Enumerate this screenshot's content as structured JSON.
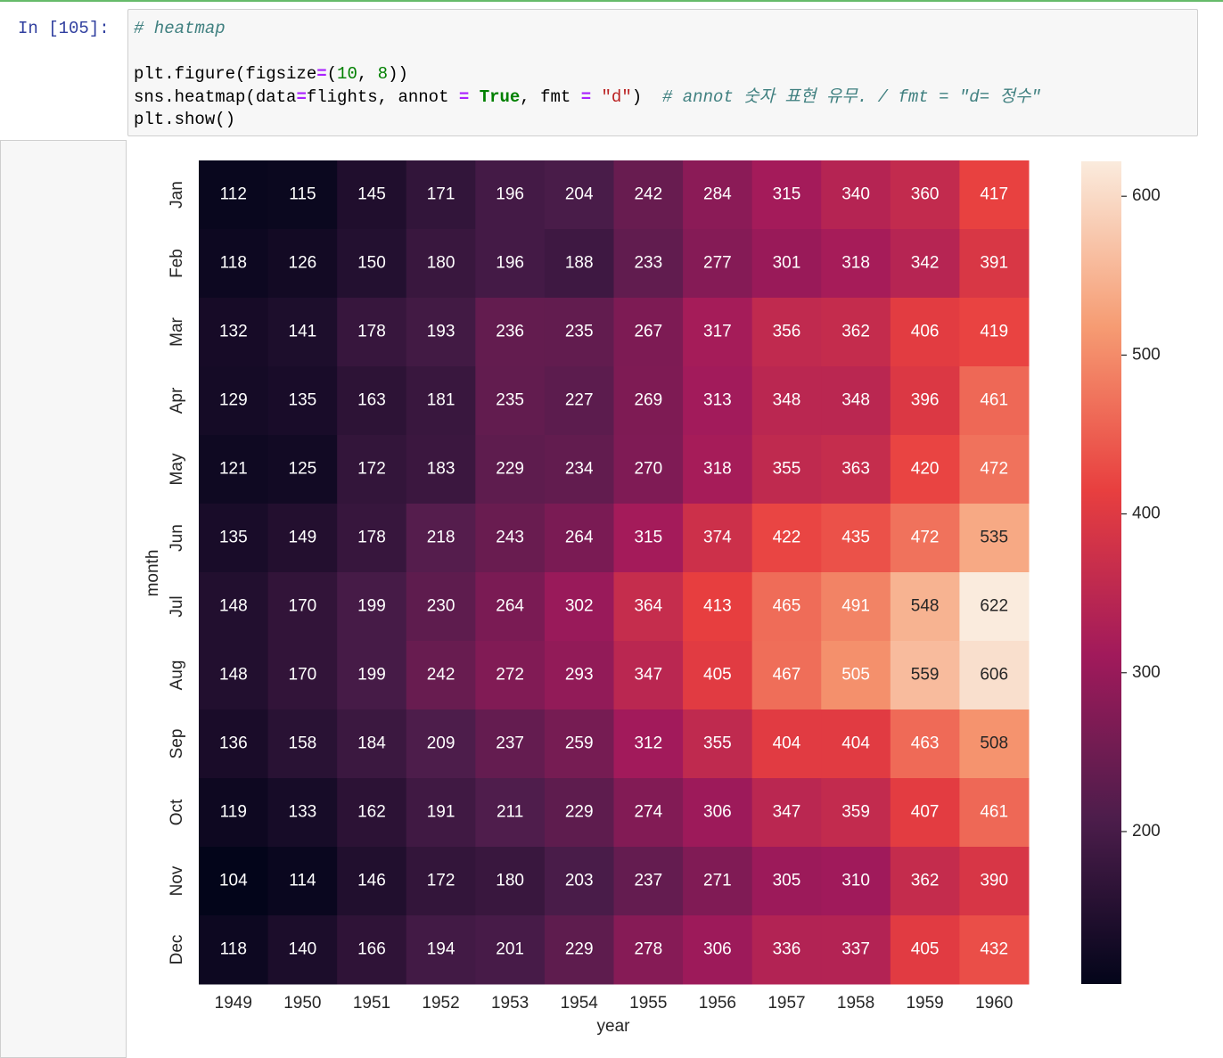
{
  "prompt": "In [105]:",
  "code": {
    "lines": [
      [
        {
          "text": "# heatmap",
          "style": "comment"
        }
      ],
      [],
      [
        {
          "text": "plt.figure(figsize",
          "style": "plain"
        },
        {
          "text": "=",
          "style": "operator"
        },
        {
          "text": "(",
          "style": "plain"
        },
        {
          "text": "10",
          "style": "number"
        },
        {
          "text": ", ",
          "style": "plain"
        },
        {
          "text": "8",
          "style": "number"
        },
        {
          "text": "))",
          "style": "plain"
        }
      ],
      [
        {
          "text": "sns.heatmap(data",
          "style": "plain"
        },
        {
          "text": "=",
          "style": "operator"
        },
        {
          "text": "flights, annot ",
          "style": "plain"
        },
        {
          "text": "=",
          "style": "operator"
        },
        {
          "text": " ",
          "style": "plain"
        },
        {
          "text": "True",
          "style": "keyword"
        },
        {
          "text": ", fmt ",
          "style": "plain"
        },
        {
          "text": "=",
          "style": "operator"
        },
        {
          "text": " ",
          "style": "plain"
        },
        {
          "text": "\"d\"",
          "style": "string"
        },
        {
          "text": ")  ",
          "style": "plain"
        },
        {
          "text": "# annot 숫자 표현 유무. / fmt = \"d= 정수\"",
          "style": "comment"
        }
      ],
      [
        {
          "text": "plt.show()",
          "style": "plain"
        }
      ]
    ]
  },
  "chart_data": {
    "type": "heatmap",
    "xlabel": "year",
    "ylabel": "month",
    "x": [
      1949,
      1950,
      1951,
      1952,
      1953,
      1954,
      1955,
      1956,
      1957,
      1958,
      1959,
      1960
    ],
    "y": [
      "Jan",
      "Feb",
      "Mar",
      "Apr",
      "May",
      "Jun",
      "Jul",
      "Aug",
      "Sep",
      "Oct",
      "Nov",
      "Dec"
    ],
    "values": [
      [
        112,
        115,
        145,
        171,
        196,
        204,
        242,
        284,
        315,
        340,
        360,
        417
      ],
      [
        118,
        126,
        150,
        180,
        196,
        188,
        233,
        277,
        301,
        318,
        342,
        391
      ],
      [
        132,
        141,
        178,
        193,
        236,
        235,
        267,
        317,
        356,
        362,
        406,
        419
      ],
      [
        129,
        135,
        163,
        181,
        235,
        227,
        269,
        313,
        348,
        348,
        396,
        461
      ],
      [
        121,
        125,
        172,
        183,
        229,
        234,
        270,
        318,
        355,
        363,
        420,
        472
      ],
      [
        135,
        149,
        178,
        218,
        243,
        264,
        315,
        374,
        422,
        435,
        472,
        535
      ],
      [
        148,
        170,
        199,
        230,
        264,
        302,
        364,
        413,
        465,
        491,
        548,
        622
      ],
      [
        148,
        170,
        199,
        242,
        272,
        293,
        347,
        405,
        467,
        505,
        559,
        606
      ],
      [
        136,
        158,
        184,
        209,
        237,
        259,
        312,
        355,
        404,
        404,
        463,
        508
      ],
      [
        119,
        133,
        162,
        191,
        211,
        229,
        274,
        306,
        347,
        359,
        407,
        461
      ],
      [
        104,
        114,
        146,
        172,
        180,
        203,
        237,
        271,
        305,
        310,
        362,
        390
      ],
      [
        118,
        140,
        166,
        194,
        201,
        229,
        278,
        306,
        336,
        337,
        405,
        432
      ]
    ],
    "zlim": [
      104,
      622
    ],
    "zticks": [
      200,
      300,
      400,
      500,
      600
    ],
    "colormap": [
      "#03051a",
      "#4c1d4b",
      "#a11a5b",
      "#e83f3f",
      "#f69c73",
      "#faebdd"
    ]
  }
}
